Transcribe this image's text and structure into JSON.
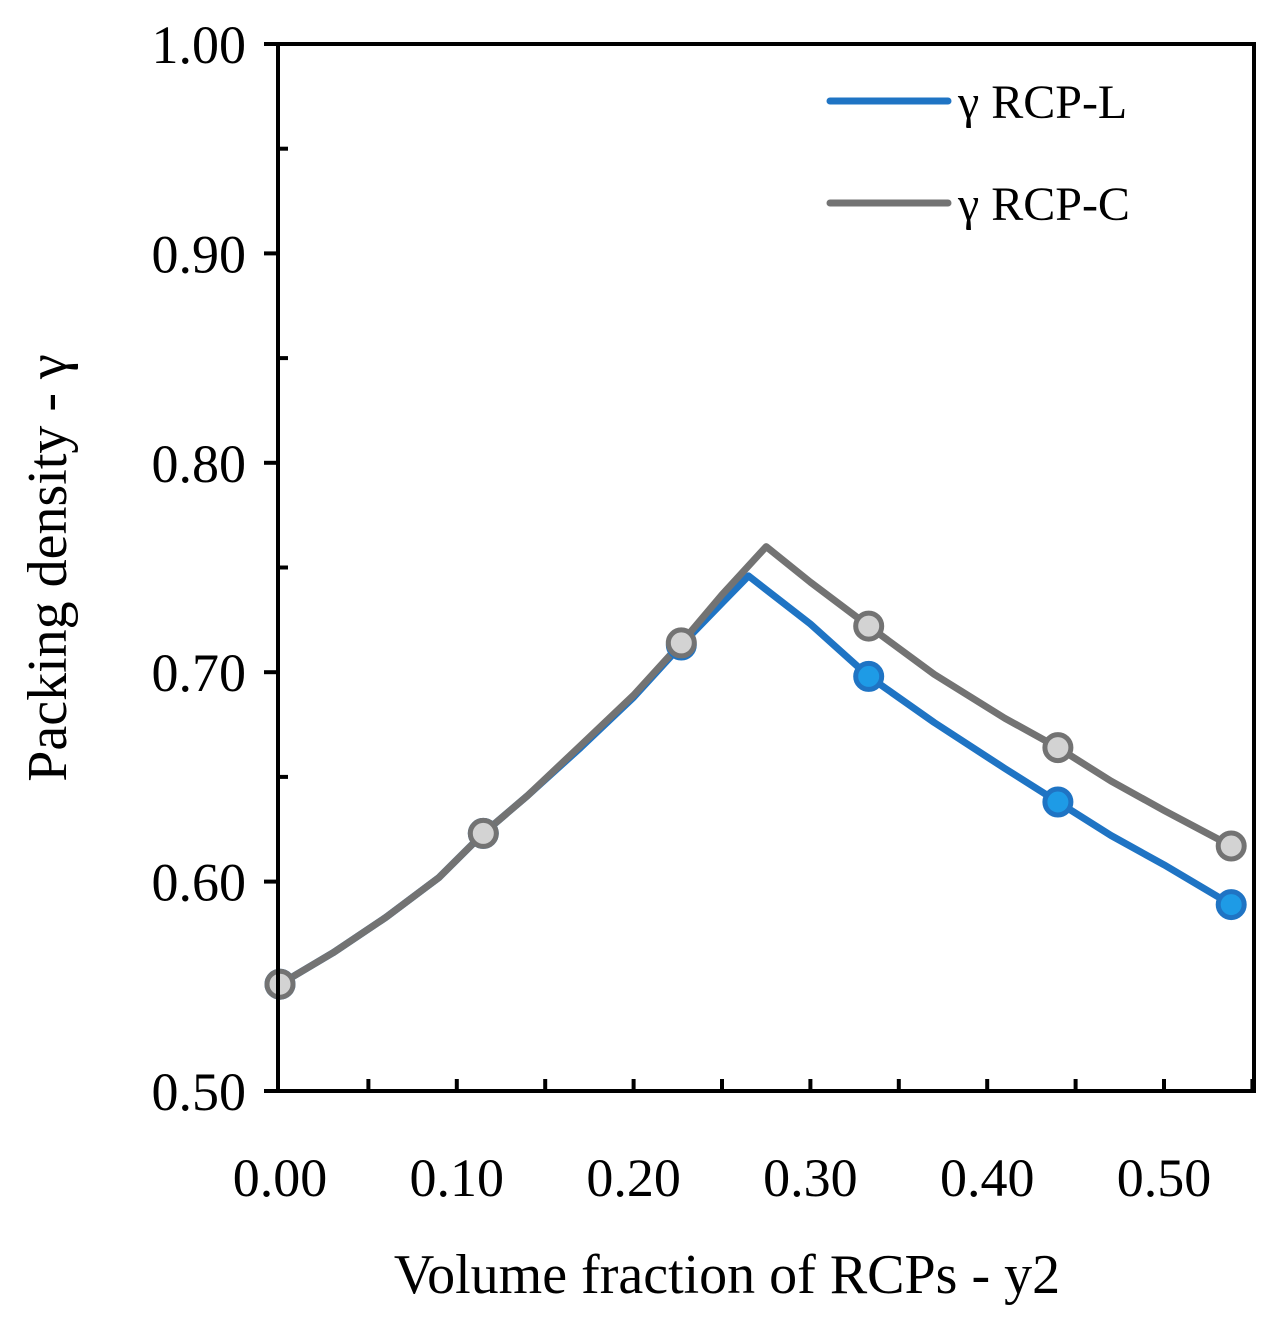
{
  "chart_data": {
    "type": "line",
    "xlabel": "Volume fraction of RCPs - y2",
    "ylabel": "Packing density - γ",
    "xlim": [
      0,
      0.55
    ],
    "ylim": [
      0.5,
      1.0
    ],
    "x_ticks": [
      0.0,
      0.1,
      0.2,
      0.3,
      0.4,
      0.5
    ],
    "x_tick_labels": [
      "0.00",
      "0.10",
      "0.20",
      "0.30",
      "0.40",
      "0.50"
    ],
    "y_ticks": [
      0.5,
      0.6,
      0.7,
      0.8,
      0.9,
      1.0
    ],
    "y_tick_labels": [
      "0.50",
      "0.60",
      "0.70",
      "0.80",
      "0.90",
      "1.00"
    ],
    "legend_position": "top-right",
    "series": [
      {
        "name": "γ RCP-L",
        "color": "#1f74c4",
        "marker_fill": "#1e9be6",
        "curve": [
          {
            "x": 0.0,
            "y": 0.551
          },
          {
            "x": 0.03,
            "y": 0.566
          },
          {
            "x": 0.06,
            "y": 0.583
          },
          {
            "x": 0.09,
            "y": 0.602
          },
          {
            "x": 0.115,
            "y": 0.623
          },
          {
            "x": 0.14,
            "y": 0.641
          },
          {
            "x": 0.17,
            "y": 0.664
          },
          {
            "x": 0.2,
            "y": 0.688
          },
          {
            "x": 0.227,
            "y": 0.713
          },
          {
            "x": 0.25,
            "y": 0.733
          },
          {
            "x": 0.265,
            "y": 0.746
          },
          {
            "x": 0.3,
            "y": 0.723
          },
          {
            "x": 0.333,
            "y": 0.698
          },
          {
            "x": 0.37,
            "y": 0.676
          },
          {
            "x": 0.41,
            "y": 0.654
          },
          {
            "x": 0.44,
            "y": 0.638
          },
          {
            "x": 0.47,
            "y": 0.622
          },
          {
            "x": 0.5,
            "y": 0.608
          },
          {
            "x": 0.538,
            "y": 0.589
          }
        ],
        "markers": [
          {
            "x": 0.0,
            "y": 0.551
          },
          {
            "x": 0.115,
            "y": 0.623
          },
          {
            "x": 0.227,
            "y": 0.713
          },
          {
            "x": 0.333,
            "y": 0.698
          },
          {
            "x": 0.44,
            "y": 0.638
          },
          {
            "x": 0.538,
            "y": 0.589
          }
        ]
      },
      {
        "name": "γ RCP-C",
        "color": "#737373",
        "marker_fill": "#d3d3d3",
        "curve": [
          {
            "x": 0.0,
            "y": 0.551
          },
          {
            "x": 0.03,
            "y": 0.566
          },
          {
            "x": 0.06,
            "y": 0.583
          },
          {
            "x": 0.09,
            "y": 0.602
          },
          {
            "x": 0.115,
            "y": 0.623
          },
          {
            "x": 0.14,
            "y": 0.641
          },
          {
            "x": 0.17,
            "y": 0.665
          },
          {
            "x": 0.2,
            "y": 0.689
          },
          {
            "x": 0.227,
            "y": 0.714
          },
          {
            "x": 0.25,
            "y": 0.737
          },
          {
            "x": 0.275,
            "y": 0.76
          },
          {
            "x": 0.3,
            "y": 0.743
          },
          {
            "x": 0.333,
            "y": 0.722
          },
          {
            "x": 0.37,
            "y": 0.699
          },
          {
            "x": 0.41,
            "y": 0.678
          },
          {
            "x": 0.44,
            "y": 0.664
          },
          {
            "x": 0.47,
            "y": 0.648
          },
          {
            "x": 0.5,
            "y": 0.634
          },
          {
            "x": 0.538,
            "y": 0.617
          }
        ],
        "markers": [
          {
            "x": 0.0,
            "y": 0.551
          },
          {
            "x": 0.115,
            "y": 0.623
          },
          {
            "x": 0.227,
            "y": 0.714
          },
          {
            "x": 0.333,
            "y": 0.722
          },
          {
            "x": 0.44,
            "y": 0.664
          },
          {
            "x": 0.538,
            "y": 0.617
          }
        ]
      }
    ]
  }
}
